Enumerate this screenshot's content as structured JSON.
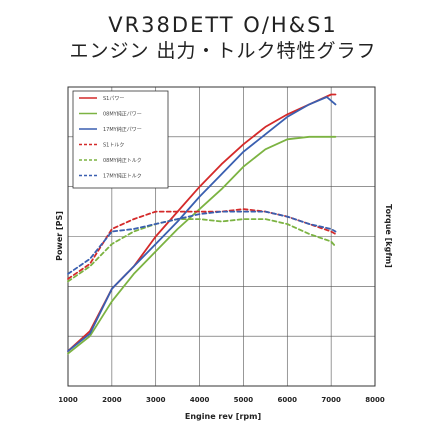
{
  "title": "VR38DETT O/H&S1",
  "subtitle": "エンジン 出力・トルク特性グラフ",
  "chart_data": {
    "type": "line",
    "xlabel": "Engine rev [rpm]",
    "ylabel_left": "Power [PS]",
    "ylabel_right": "Torque [kgfm]",
    "xlim": [
      1000,
      8000
    ],
    "x_ticks": [
      "1000",
      "2000",
      "3000",
      "4000",
      "5000",
      "6000",
      "7000",
      "8000"
    ],
    "grid": true,
    "legend_position": "top-left",
    "series": [
      {
        "name": "S1パワー",
        "color": "#d42a2a",
        "dash": false,
        "axis": "power",
        "x": [
          1000,
          1500,
          2000,
          2500,
          3000,
          3500,
          4000,
          4500,
          5000,
          5500,
          6000,
          6500,
          7000,
          7100
        ],
        "y": [
          0.14,
          0.22,
          0.39,
          0.48,
          0.6,
          0.7,
          0.8,
          0.89,
          0.97,
          1.04,
          1.09,
          1.13,
          1.17,
          1.17
        ]
      },
      {
        "name": "08MY純正パワー",
        "color": "#7cb342",
        "dash": false,
        "axis": "power",
        "x": [
          1000,
          1500,
          2000,
          2500,
          3000,
          3500,
          4000,
          4500,
          5000,
          5500,
          6000,
          6500,
          7000,
          7100
        ],
        "y": [
          0.13,
          0.2,
          0.34,
          0.45,
          0.54,
          0.63,
          0.71,
          0.79,
          0.88,
          0.95,
          0.99,
          1.0,
          1.0,
          1.0
        ]
      },
      {
        "name": "17MY純正パワー",
        "color": "#3a5fb0",
        "dash": false,
        "axis": "power",
        "x": [
          1000,
          1500,
          2000,
          2500,
          3000,
          3500,
          4000,
          4500,
          5000,
          5500,
          6000,
          6500,
          6900,
          7100
        ],
        "y": [
          0.14,
          0.21,
          0.39,
          0.48,
          0.57,
          0.66,
          0.76,
          0.85,
          0.94,
          1.01,
          1.08,
          1.13,
          1.16,
          1.13
        ]
      },
      {
        "name": "S1トルク",
        "color": "#d42a2a",
        "dash": true,
        "axis": "torque",
        "x": [
          1000,
          1500,
          2000,
          2500,
          3000,
          3500,
          4000,
          4500,
          5000,
          5500,
          6000,
          6500,
          7000,
          7100
        ],
        "y": [
          0.43,
          0.49,
          0.63,
          0.67,
          0.7,
          0.7,
          0.7,
          0.7,
          0.71,
          0.7,
          0.68,
          0.65,
          0.62,
          0.61
        ]
      },
      {
        "name": "08MY純正トルク",
        "color": "#7cb342",
        "dash": true,
        "axis": "torque",
        "x": [
          1000,
          1500,
          2000,
          2500,
          3000,
          3500,
          4000,
          4500,
          5000,
          5500,
          6000,
          6500,
          7000,
          7100
        ],
        "y": [
          0.42,
          0.48,
          0.57,
          0.62,
          0.65,
          0.67,
          0.67,
          0.66,
          0.67,
          0.67,
          0.65,
          0.61,
          0.58,
          0.56
        ]
      },
      {
        "name": "17MY純正トルク",
        "color": "#3a5fb0",
        "dash": true,
        "axis": "torque",
        "x": [
          1000,
          1500,
          2000,
          2500,
          3000,
          3500,
          4000,
          4500,
          5000,
          5500,
          6000,
          6500,
          7000,
          7100
        ],
        "y": [
          0.45,
          0.51,
          0.62,
          0.63,
          0.65,
          0.67,
          0.69,
          0.7,
          0.7,
          0.7,
          0.68,
          0.65,
          0.63,
          0.62
        ]
      }
    ]
  }
}
